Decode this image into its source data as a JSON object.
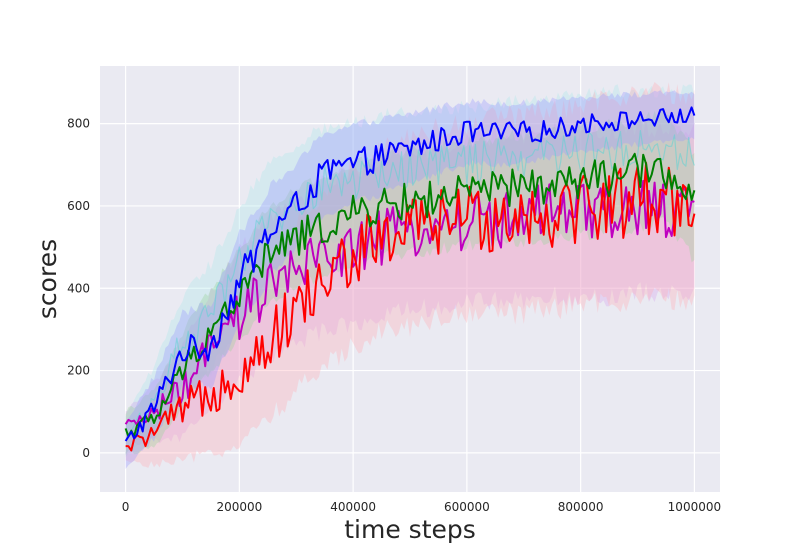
{
  "chart_data": {
    "type": "line",
    "title": "",
    "xlabel": "time steps",
    "ylabel": "scores",
    "xlim": [
      -45000,
      1045000
    ],
    "ylim": [
      -95,
      940
    ],
    "xticks": [
      0,
      200000,
      400000,
      600000,
      800000,
      1000000
    ],
    "xtick_labels": [
      "0",
      "200000",
      "400000",
      "600000",
      "800000",
      "1000000"
    ],
    "yticks": [
      0,
      200,
      400,
      600,
      800
    ],
    "ytick_labels": [
      "0",
      "200",
      "400",
      "600",
      "800"
    ],
    "grid": true,
    "legend": "none",
    "background": "#eaeaf2",
    "series": [
      {
        "color": "#0000ff",
        "band_color": "#9a9aff",
        "x": [
          0,
          50000,
          100000,
          150000,
          200000,
          250000,
          300000,
          350000,
          400000,
          450000,
          500000,
          550000,
          600000,
          650000,
          700000,
          750000,
          800000,
          850000,
          900000,
          950000,
          1000000
        ],
        "y": [
          20,
          110,
          250,
          260,
          420,
          530,
          600,
          680,
          700,
          720,
          740,
          760,
          780,
          775,
          780,
          785,
          800,
          805,
          810,
          815,
          820
        ],
        "band": [
          55,
          75,
          90,
          100,
          110,
          110,
          100,
          100,
          95,
          90,
          85,
          80,
          75,
          75,
          70,
          70,
          65,
          65,
          60,
          60,
          55
        ]
      },
      {
        "color": "#008000",
        "band_color": "#9bd49b",
        "x": [
          0,
          50000,
          100000,
          150000,
          200000,
          250000,
          300000,
          350000,
          400000,
          450000,
          500000,
          550000,
          600000,
          650000,
          700000,
          750000,
          800000,
          850000,
          900000,
          950000,
          1000000
        ],
        "y": [
          50,
          80,
          200,
          300,
          380,
          480,
          520,
          550,
          580,
          600,
          610,
          620,
          630,
          640,
          645,
          650,
          660,
          670,
          680,
          690,
          600
        ],
        "band": [
          50,
          70,
          90,
          100,
          110,
          115,
          120,
          120,
          120,
          120,
          125,
          125,
          125,
          125,
          130,
          130,
          130,
          130,
          130,
          130,
          130
        ]
      },
      {
        "color": "#ff0000",
        "band_color": "#ffb0b8",
        "x": [
          0,
          50000,
          100000,
          150000,
          200000,
          250000,
          300000,
          350000,
          400000,
          450000,
          500000,
          550000,
          600000,
          650000,
          700000,
          750000,
          800000,
          850000,
          900000,
          950000,
          1000000
        ],
        "y": [
          10,
          50,
          100,
          150,
          200,
          270,
          350,
          420,
          480,
          520,
          540,
          560,
          570,
          580,
          580,
          590,
          600,
          610,
          620,
          620,
          620
        ],
        "band": [
          30,
          80,
          120,
          150,
          180,
          190,
          200,
          210,
          220,
          220,
          230,
          230,
          230,
          240,
          240,
          240,
          240,
          250,
          250,
          250,
          250
        ]
      },
      {
        "color": "#bf00bf",
        "band_color": "#d6a6ef",
        "x": [
          0,
          50000,
          100000,
          150000,
          200000,
          250000,
          300000,
          350000,
          400000,
          450000,
          500000,
          550000,
          600000,
          650000,
          700000,
          750000,
          800000,
          850000,
          900000,
          950000,
          1000000
        ],
        "y": [
          60,
          100,
          150,
          250,
          330,
          400,
          440,
          480,
          500,
          520,
          540,
          550,
          560,
          570,
          570,
          580,
          580,
          580,
          590,
          590,
          580
        ],
        "band": [
          40,
          70,
          110,
          140,
          160,
          170,
          175,
          180,
          185,
          190,
          190,
          195,
          195,
          200,
          200,
          200,
          200,
          200,
          200,
          200,
          200
        ]
      },
      {
        "color": "#5fd3d3",
        "band_color": "#b0e8ec",
        "x": [
          0,
          50000,
          100000,
          150000,
          200000,
          250000,
          300000,
          350000,
          400000,
          450000,
          500000,
          550000,
          600000,
          650000,
          700000,
          750000,
          800000,
          850000,
          900000,
          950000,
          1000000
        ],
        "y": [
          40,
          130,
          270,
          330,
          450,
          560,
          610,
          650,
          660,
          680,
          690,
          700,
          700,
          710,
          720,
          720,
          730,
          740,
          740,
          740,
          740
        ],
        "band": [
          50,
          80,
          110,
          130,
          140,
          140,
          140,
          140,
          140,
          140,
          140,
          140,
          140,
          140,
          140,
          140,
          140,
          140,
          140,
          140,
          140
        ]
      }
    ]
  }
}
